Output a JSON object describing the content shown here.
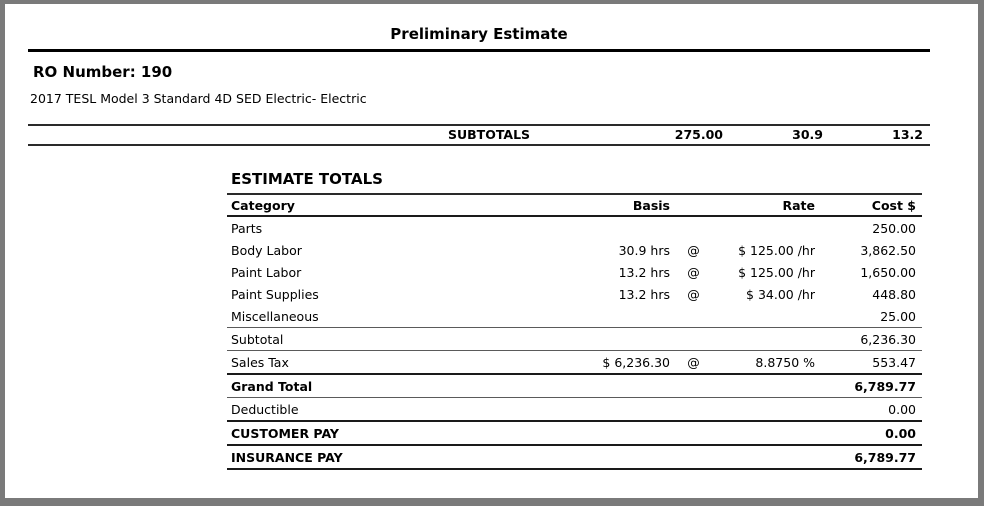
{
  "doc": {
    "title": "Preliminary Estimate",
    "ro_number": "RO Number: 190",
    "vehicle": "2017 TESL Model 3 Standard 4D SED Electric- Electric"
  },
  "subtotals": {
    "label": "SUBTOTALS",
    "values": [
      "275.00",
      "30.9",
      "13.2"
    ]
  },
  "totals": {
    "heading": "ESTIMATE TOTALS",
    "columns": {
      "category": "Category",
      "basis": "Basis",
      "rate": "Rate",
      "cost": "Cost $"
    },
    "rows": [
      {
        "category": "Parts",
        "basis": "",
        "at": "",
        "rate": "",
        "cost": "250.00"
      },
      {
        "category": "Body Labor",
        "basis": "30.9 hrs",
        "at": "@",
        "rate": "$ 125.00 /hr",
        "cost": "3,862.50"
      },
      {
        "category": "Paint Labor",
        "basis": "13.2 hrs",
        "at": "@",
        "rate": "$ 125.00 /hr",
        "cost": "1,650.00"
      },
      {
        "category": "Paint Supplies",
        "basis": "13.2 hrs",
        "at": "@",
        "rate": "$ 34.00 /hr",
        "cost": "448.80"
      },
      {
        "category": "Miscellaneous",
        "basis": "",
        "at": "",
        "rate": "",
        "cost": "25.00"
      },
      {
        "category": "Subtotal",
        "basis": "",
        "at": "",
        "rate": "",
        "cost": "6,236.30"
      },
      {
        "category": "Sales Tax",
        "basis": "$ 6,236.30",
        "at": "@",
        "rate": "8.8750 %",
        "cost": "553.47"
      },
      {
        "category": "Grand Total",
        "basis": "",
        "at": "",
        "rate": "",
        "cost": "6,789.77"
      },
      {
        "category": "Deductible",
        "basis": "",
        "at": "",
        "rate": "",
        "cost": "0.00"
      },
      {
        "category": "CUSTOMER PAY",
        "basis": "",
        "at": "",
        "rate": "",
        "cost": "0.00"
      },
      {
        "category": "INSURANCE PAY",
        "basis": "",
        "at": "",
        "rate": "",
        "cost": "6,789.77"
      }
    ]
  },
  "colors": {
    "frame": "#7a7a7a",
    "rule": "#000000",
    "thin_separator": "#5a5a5a",
    "thick_separator": "#1a1a1a"
  }
}
